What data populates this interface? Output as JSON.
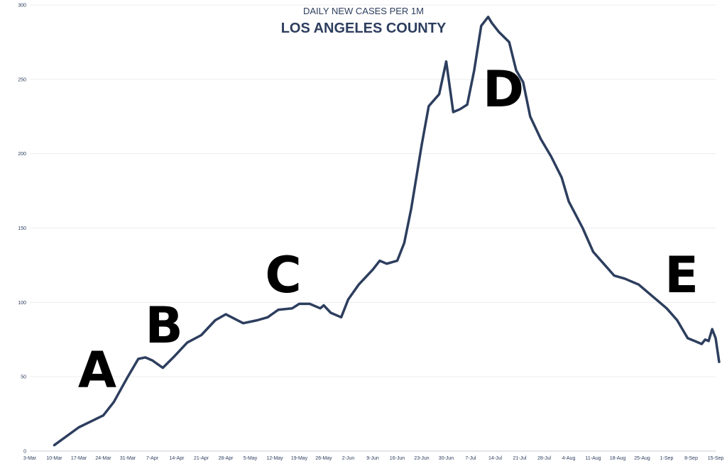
{
  "chart_data": {
    "type": "line",
    "subtitle": "DAILY NEW CASES PER 1M",
    "title": "LOS ANGELES COUNTY",
    "xlabel": "",
    "ylabel": "",
    "ylim": [
      0,
      300
    ],
    "y_ticks": [
      "0",
      "50",
      "100",
      "150",
      "200",
      "250",
      "300"
    ],
    "x_ticks": [
      "3-Mar",
      "10-Mar",
      "17-Mar",
      "24-Mar",
      "31-Mar",
      "7-Apr",
      "14-Apr",
      "21-Apr",
      "28-Apr",
      "5-May",
      "12-May",
      "19-May",
      "26-May",
      "2-Jun",
      "9-Jun",
      "16-Jun",
      "23-Jun",
      "30-Jun",
      "7-Jul",
      "14-Jul",
      "21-Jul",
      "28-Jul",
      "4-Aug",
      "11-Aug",
      "18-Aug",
      "25-Aug",
      "1-Sep",
      "8-Sep",
      "15-Sep"
    ],
    "grid": true,
    "line_color": "#2d3e5e",
    "series": [
      {
        "x": [
          "10-Mar",
          "17-Mar",
          "24-Mar",
          "27-Mar",
          "31-Mar",
          "3-Apr",
          "5-Apr",
          "7-Apr",
          "10-Apr",
          "13-Apr",
          "17-Apr",
          "21-Apr",
          "25-Apr",
          "28-Apr",
          "3-May",
          "7-May",
          "10-May",
          "13-May",
          "17-May",
          "19-May",
          "22-May",
          "25-May",
          "26-May",
          "28-May",
          "31-May",
          "2-Jun",
          "5-Jun",
          "9-Jun",
          "11-Jun",
          "13-Jun",
          "16-Jun",
          "18-Jun",
          "20-Jun",
          "23-Jun",
          "25-Jun",
          "28-Jun",
          "30-Jun",
          "2-Jul",
          "4-Jul",
          "6-Jul",
          "8-Jul",
          "10-Jul",
          "12-Jul",
          "13-Jul",
          "15-Jul",
          "18-Jul",
          "20-Jul",
          "22-Jul",
          "24-Jul",
          "27-Jul",
          "30-Jul",
          "2-Aug",
          "4-Aug",
          "8-Aug",
          "11-Aug",
          "14-Aug",
          "17-Aug",
          "20-Aug",
          "24-Aug",
          "28-Aug",
          "1-Sep",
          "4-Sep",
          "6-Sep",
          "7-Sep",
          "9-Sep",
          "11-Sep",
          "12-Sep",
          "13-Sep",
          "14-Sep",
          "15-Sep",
          "16-Sep"
        ],
        "values": [
          4,
          16,
          24,
          33,
          50,
          62,
          63,
          61,
          56,
          63,
          73,
          78,
          88,
          92,
          86,
          88,
          90,
          95,
          96,
          99,
          99,
          96,
          98,
          93,
          90,
          102,
          112,
          122,
          128,
          126,
          128,
          140,
          163,
          206,
          232,
          240,
          262,
          228,
          230,
          233,
          256,
          286,
          292,
          288,
          282,
          275,
          256,
          248,
          225,
          210,
          198,
          184,
          168,
          150,
          134,
          126,
          118,
          116,
          112,
          104,
          96,
          88,
          80,
          76,
          74,
          72,
          75,
          74,
          82,
          76,
          60
        ]
      }
    ],
    "annotations": [
      "A",
      "B",
      "C",
      "D",
      "E"
    ]
  }
}
